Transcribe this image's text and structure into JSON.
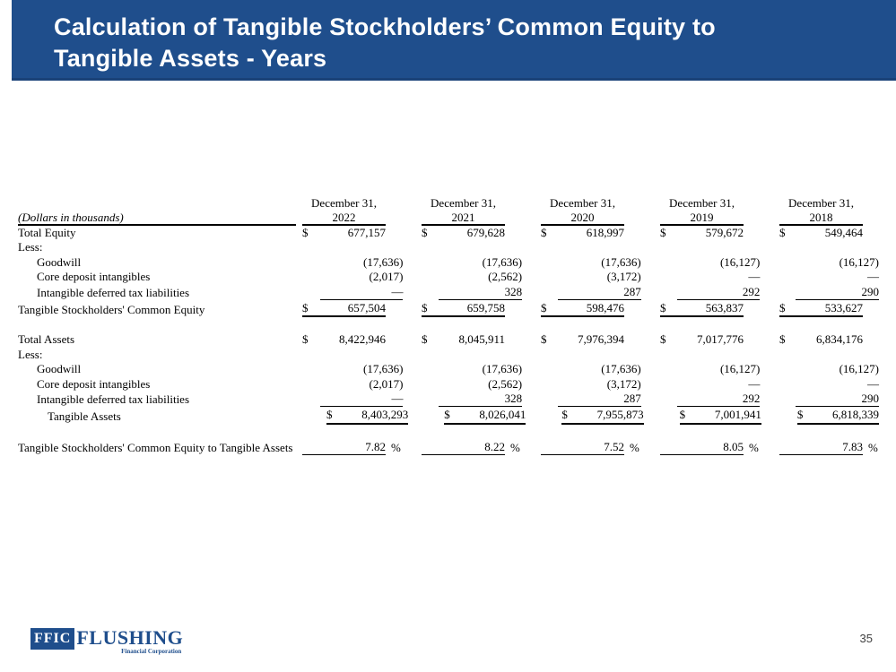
{
  "title": {
    "line1": "Calculation of Tangible Stockholders’ Common Equity to",
    "line2": "Tangible Assets - Years"
  },
  "page_number": "35",
  "logo": {
    "abbr": "FFIC",
    "name": "FLUSHING",
    "subtitle": "Financial Corporation"
  },
  "colors": {
    "banner_blue": "#1F4E8C",
    "logo_blue": "#1F4E8C"
  },
  "table": {
    "note": "(Dollars in thousands)",
    "currency_symbol": "$",
    "percent_sign": "%",
    "date_label": "December 31,",
    "years": [
      "2022",
      "2021",
      "2020",
      "2019",
      "2018"
    ],
    "rows": [
      {
        "label": "Total Equity",
        "values": [
          "677,157",
          "679,628",
          "618,997",
          "579,672",
          "549,464"
        ]
      },
      {
        "label": "Less:"
      },
      {
        "label": "Goodwill",
        "values": [
          "(17,636)",
          "(17,636)",
          "(17,636)",
          "(16,127)",
          "(16,127)"
        ]
      },
      {
        "label": "Core deposit intangibles",
        "values": [
          "(2,017)",
          "(2,562)",
          "(3,172)",
          "—",
          "—"
        ]
      },
      {
        "label": "Intangible deferred tax liabilities",
        "values": [
          "—",
          "328",
          "287",
          "292",
          "290"
        ]
      },
      {
        "label": "Tangible Stockholders' Common Equity",
        "values": [
          "657,504",
          "659,758",
          "598,476",
          "563,837",
          "533,627"
        ]
      },
      {
        "label": "Total Assets",
        "values": [
          "8,422,946",
          "8,045,911",
          "7,976,394",
          "7,017,776",
          "6,834,176"
        ]
      },
      {
        "label": "Less:"
      },
      {
        "label": "Goodwill",
        "values": [
          "(17,636)",
          "(17,636)",
          "(17,636)",
          "(16,127)",
          "(16,127)"
        ]
      },
      {
        "label": "Core deposit intangibles",
        "values": [
          "(2,017)",
          "(2,562)",
          "(3,172)",
          "—",
          "—"
        ]
      },
      {
        "label": "Intangible deferred tax liabilities",
        "values": [
          "—",
          "328",
          "287",
          "292",
          "290"
        ]
      },
      {
        "label": "Tangible Assets",
        "values": [
          "8,403,293",
          "8,026,041",
          "7,955,873",
          "7,001,941",
          "6,818,339"
        ]
      },
      {
        "label": "Tangible Stockholders' Common Equity to Tangible Assets",
        "values": [
          "7.82",
          "8.22",
          "7.52",
          "8.05",
          "7.83"
        ]
      }
    ]
  }
}
